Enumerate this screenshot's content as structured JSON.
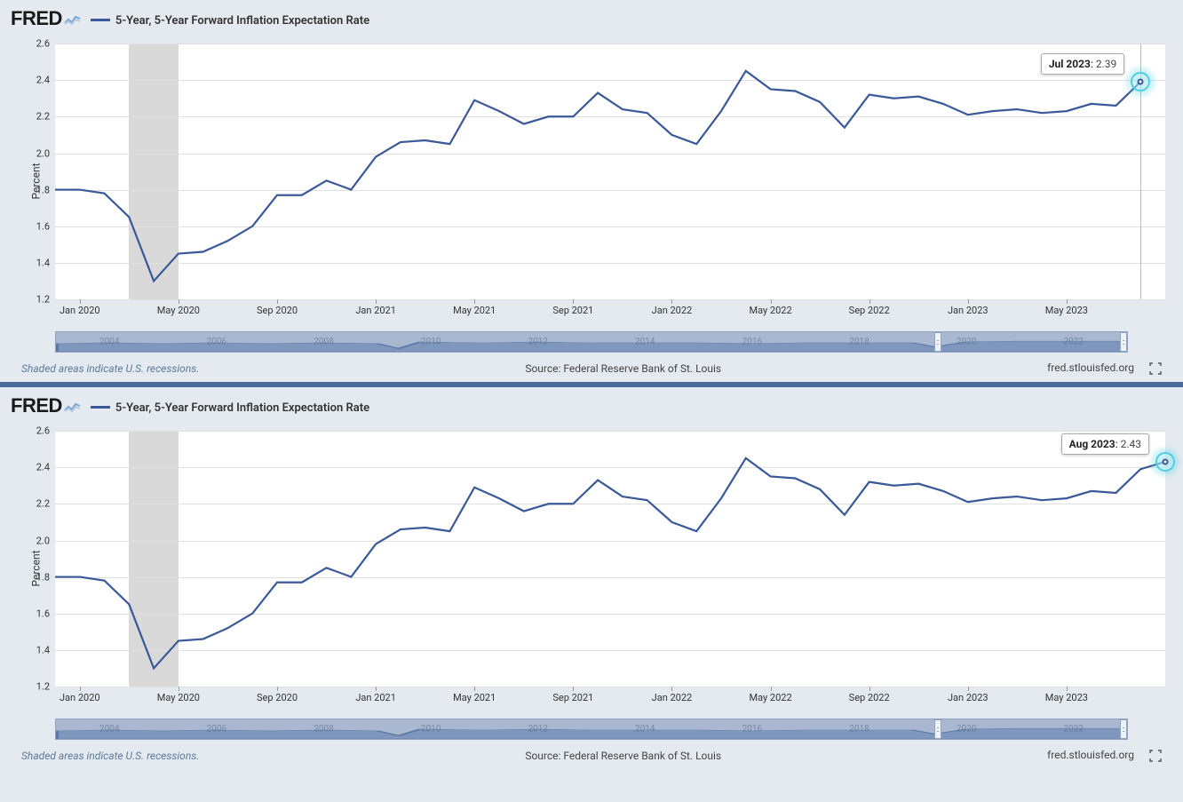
{
  "logo_text": "FRED",
  "series_title": "5-Year, 5-Year Forward Inflation Expectation Rate",
  "y_axis_label": "Percent",
  "line_color": "#3b5998",
  "background_color": "#e5eaf0",
  "plot_bg": "#ffffff",
  "grid_color": "#e0e0e0",
  "recession_color": "#d9d9d9",
  "halo_color": "#4dd0e1",
  "line_width": 2.2,
  "ylim": [
    1.2,
    2.6
  ],
  "ytick_step": 0.2,
  "yticks": [
    "1.2",
    "1.4",
    "1.6",
    "1.8",
    "2.0",
    "2.2",
    "2.4",
    "2.6"
  ],
  "x_range": {
    "start": "2019-12",
    "end": "2023-08"
  },
  "xticks": [
    "Jan 2020",
    "May 2020",
    "Sep 2020",
    "Jan 2021",
    "May 2021",
    "Sep 2021",
    "Jan 2022",
    "May 2022",
    "Sep 2022",
    "Jan 2023",
    "May 2023"
  ],
  "xtick_months": [
    1,
    5,
    9,
    13,
    17,
    21,
    25,
    29,
    33,
    37,
    41
  ],
  "total_months": 45,
  "recession_band": {
    "start_month": 3,
    "end_month": 5
  },
  "series": [
    {
      "m": 0,
      "v": 1.8
    },
    {
      "m": 1,
      "v": 1.8
    },
    {
      "m": 2,
      "v": 1.78
    },
    {
      "m": 3,
      "v": 1.65
    },
    {
      "m": 4,
      "v": 1.3
    },
    {
      "m": 5,
      "v": 1.45
    },
    {
      "m": 6,
      "v": 1.46
    },
    {
      "m": 7,
      "v": 1.52
    },
    {
      "m": 8,
      "v": 1.6
    },
    {
      "m": 9,
      "v": 1.77
    },
    {
      "m": 10,
      "v": 1.77
    },
    {
      "m": 11,
      "v": 1.85
    },
    {
      "m": 12,
      "v": 1.8
    },
    {
      "m": 13,
      "v": 1.98
    },
    {
      "m": 14,
      "v": 2.06
    },
    {
      "m": 15,
      "v": 2.07
    },
    {
      "m": 16,
      "v": 2.05
    },
    {
      "m": 17,
      "v": 2.29
    },
    {
      "m": 18,
      "v": 2.23
    },
    {
      "m": 19,
      "v": 2.16
    },
    {
      "m": 20,
      "v": 2.2
    },
    {
      "m": 21,
      "v": 2.2
    },
    {
      "m": 22,
      "v": 2.33
    },
    {
      "m": 23,
      "v": 2.24
    },
    {
      "m": 24,
      "v": 2.22
    },
    {
      "m": 25,
      "v": 2.1
    },
    {
      "m": 26,
      "v": 2.05
    },
    {
      "m": 27,
      "v": 2.23
    },
    {
      "m": 28,
      "v": 2.45
    },
    {
      "m": 29,
      "v": 2.35
    },
    {
      "m": 30,
      "v": 2.34
    },
    {
      "m": 31,
      "v": 2.28
    },
    {
      "m": 32,
      "v": 2.14
    },
    {
      "m": 33,
      "v": 2.32
    },
    {
      "m": 34,
      "v": 2.3
    },
    {
      "m": 35,
      "v": 2.31
    },
    {
      "m": 36,
      "v": 2.27
    },
    {
      "m": 37,
      "v": 2.21
    },
    {
      "m": 38,
      "v": 2.23
    },
    {
      "m": 39,
      "v": 2.24
    },
    {
      "m": 40,
      "v": 2.22
    },
    {
      "m": 41,
      "v": 2.23
    },
    {
      "m": 42,
      "v": 2.27
    },
    {
      "m": 43,
      "v": 2.26
    },
    {
      "m": 44,
      "v": 2.39
    },
    {
      "m": 45,
      "v": 2.43
    }
  ],
  "range_slider": {
    "bg": "#a9b8d0",
    "fill": "#7f97bd",
    "years": [
      "2004",
      "2006",
      "2008",
      "2010",
      "2012",
      "2014",
      "2016",
      "2018",
      "2020",
      "2022"
    ],
    "handle_left_pct": 82,
    "handle_right_pct": 99.3
  },
  "footer": {
    "recession_note": "Shaded areas indicate U.S. recessions.",
    "source": "Source: Federal Reserve Bank of St. Louis",
    "site": "fred.stlouisfed.org"
  },
  "charts": [
    {
      "tooltip": {
        "date": "Jul 2023",
        "value": "2.39",
        "month_index": 44
      },
      "series_end_index": 45,
      "hover_line": true,
      "tooltip_side": "left"
    },
    {
      "tooltip": {
        "date": "Aug 2023",
        "value": "2.43",
        "month_index": 45
      },
      "series_end_index": 46,
      "hover_line": false,
      "tooltip_side": "left"
    }
  ]
}
